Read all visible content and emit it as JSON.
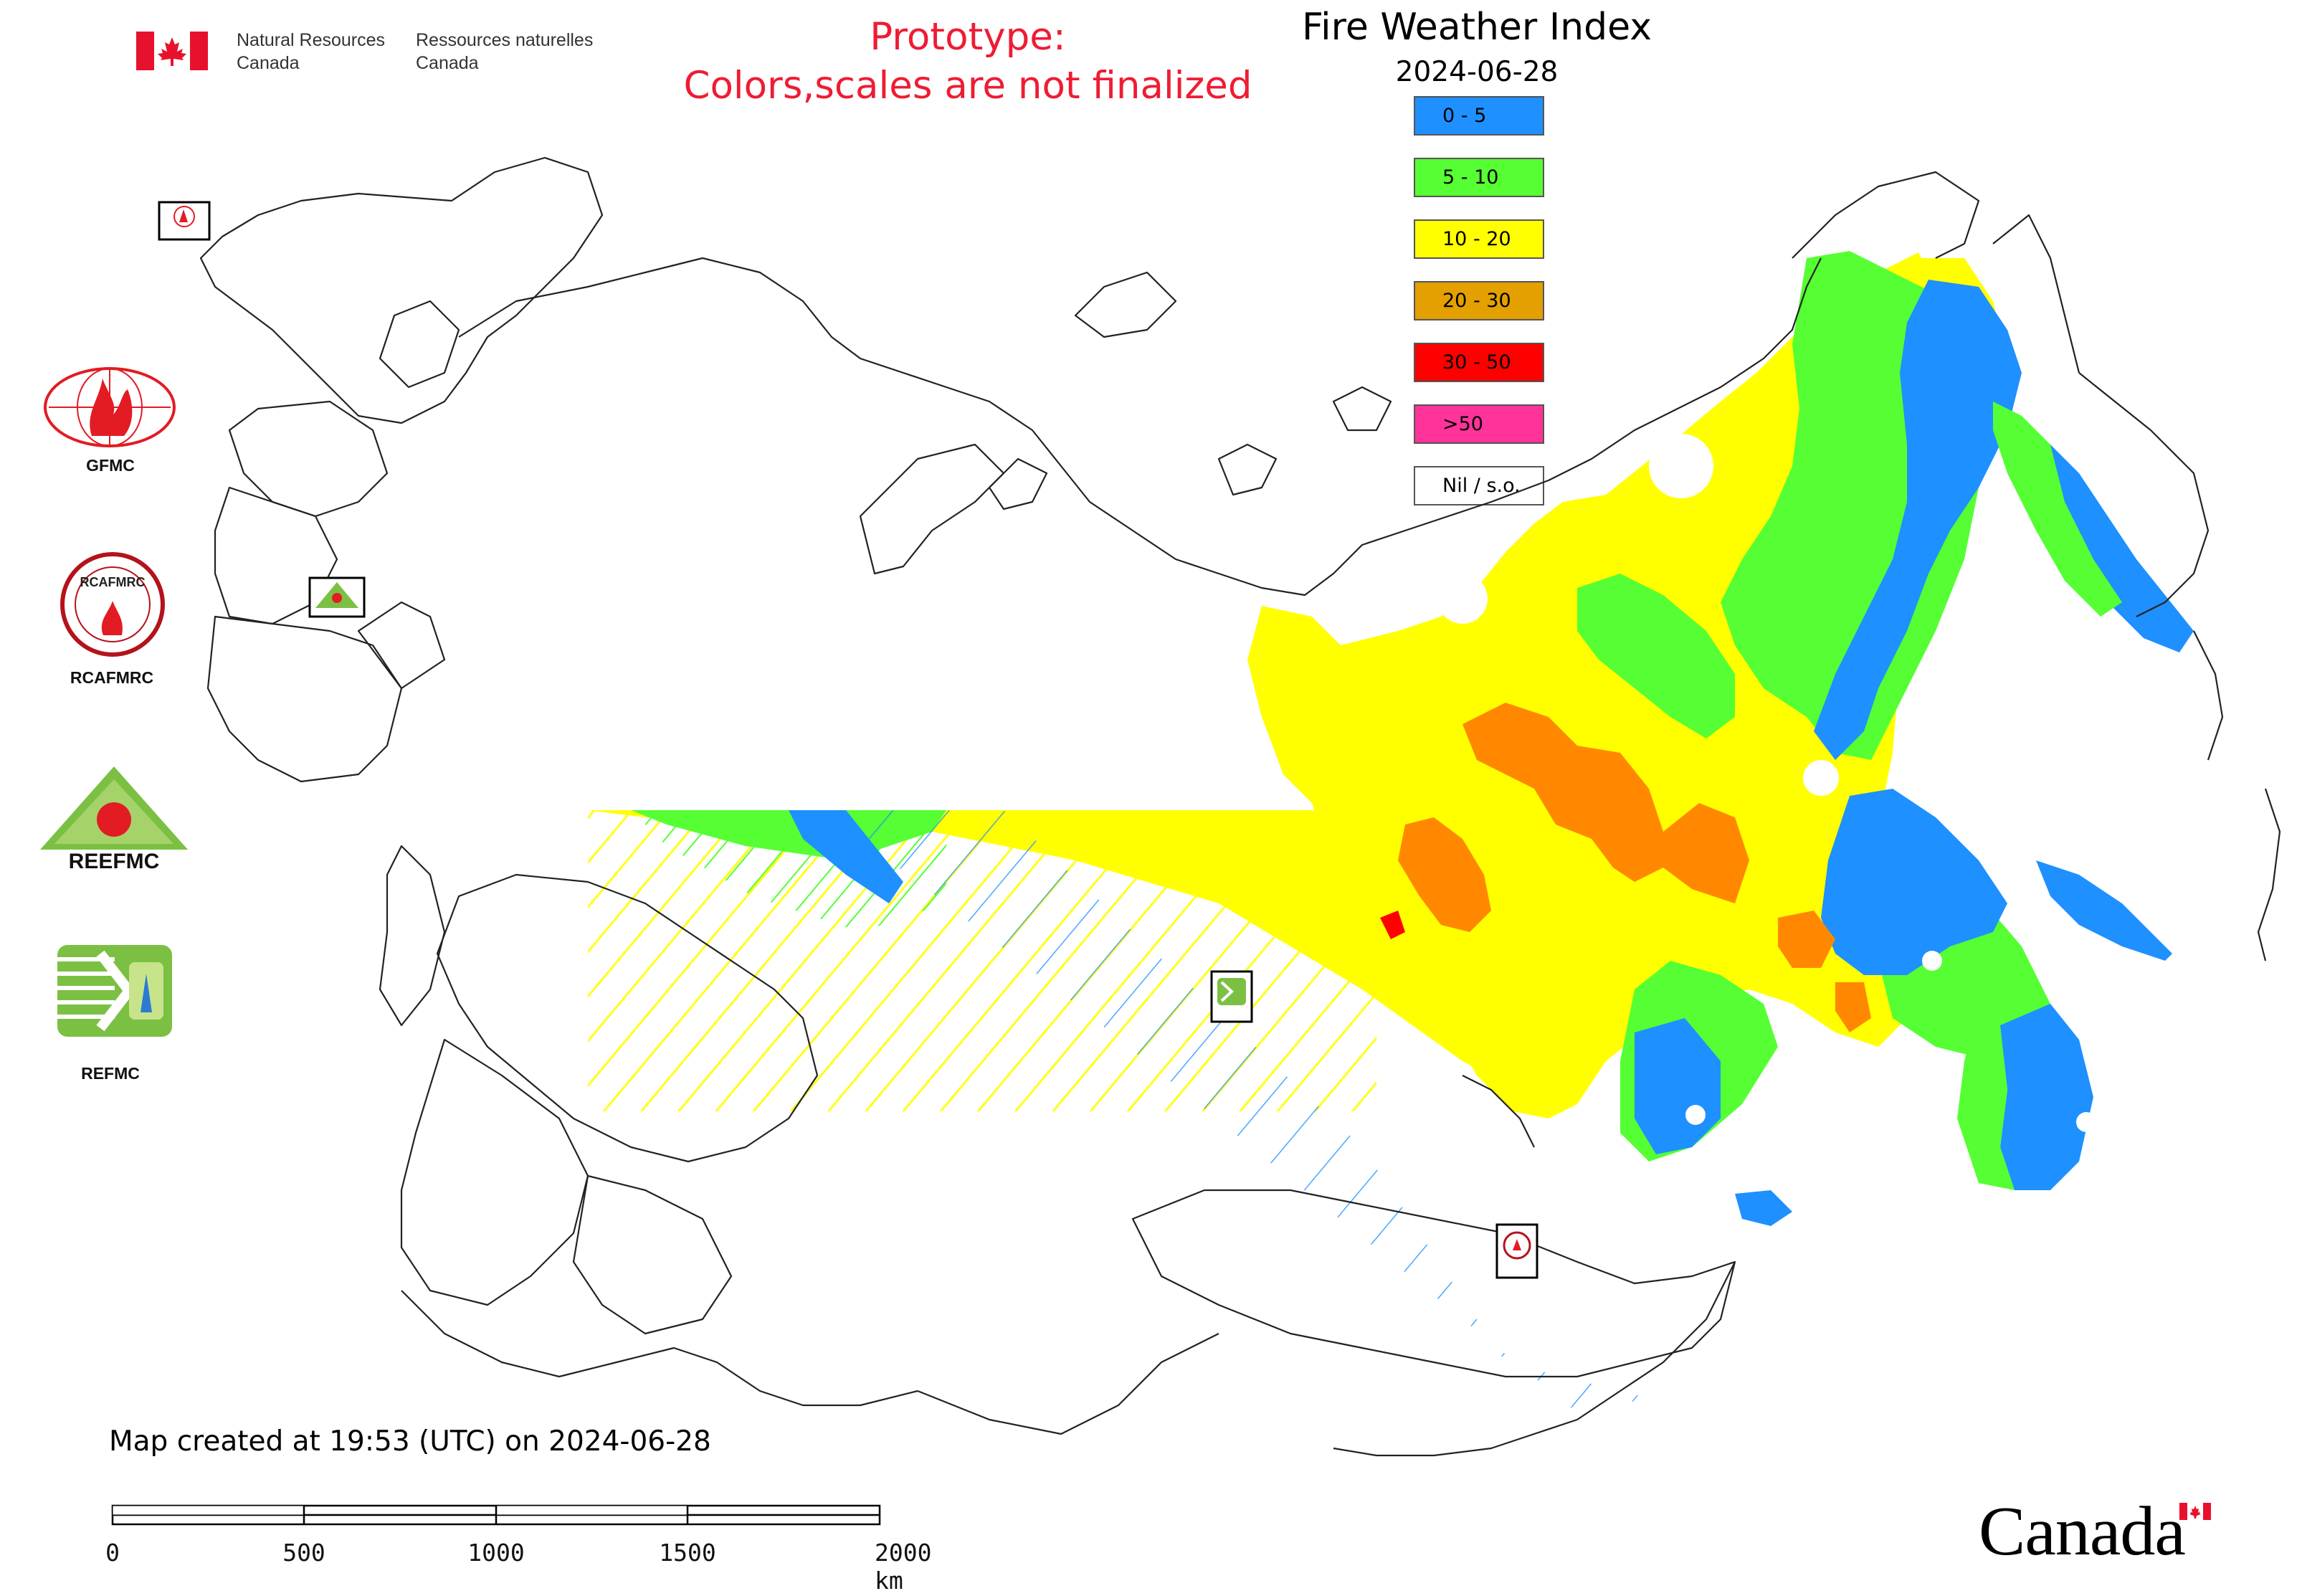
{
  "header": {
    "agency_en_line1": "Natural Resources",
    "agency_en_line2": "Canada",
    "agency_fr_line1": "Ressources naturelles",
    "agency_fr_line2": "Canada"
  },
  "prototype_notice": {
    "line1": "Prototype:",
    "line2": "Colors,scales are not finalized",
    "color": "#ee1c33"
  },
  "map": {
    "title": "Fire Weather Index",
    "date": "2024-06-28",
    "created_text": "Map created at 19:53 (UTC) on 2024-06-28"
  },
  "legend": [
    {
      "label": "0 - 5",
      "color": "#1e90ff"
    },
    {
      "label": "5 - 10",
      "color": "#55ff33"
    },
    {
      "label": "10 - 20",
      "color": "#ffff00"
    },
    {
      "label": "20 - 30",
      "color": "#e3a000"
    },
    {
      "label": "30 - 50",
      "color": "#ff0000"
    },
    {
      "label": ">50",
      "color": "#ff3399"
    },
    {
      "label": "Nil / s.o.",
      "color": "#ffffff"
    }
  ],
  "centers": [
    {
      "name": "GFMC",
      "icon": "gfmc-logo"
    },
    {
      "name": "RCAFMRC",
      "icon": "rcafmrc-logo"
    },
    {
      "name": "REEFMC",
      "icon": "reefmc-logo"
    },
    {
      "name": "REFMC",
      "icon": "refmc-logo"
    }
  ],
  "map_markers": [
    "GFMC",
    "REEFMC",
    "REFMC",
    "RCAFMRC"
  ],
  "scalebar": {
    "ticks": [
      "0",
      "500",
      "1000",
      "1500",
      "2000 km"
    ]
  },
  "wordmark": "Canada"
}
